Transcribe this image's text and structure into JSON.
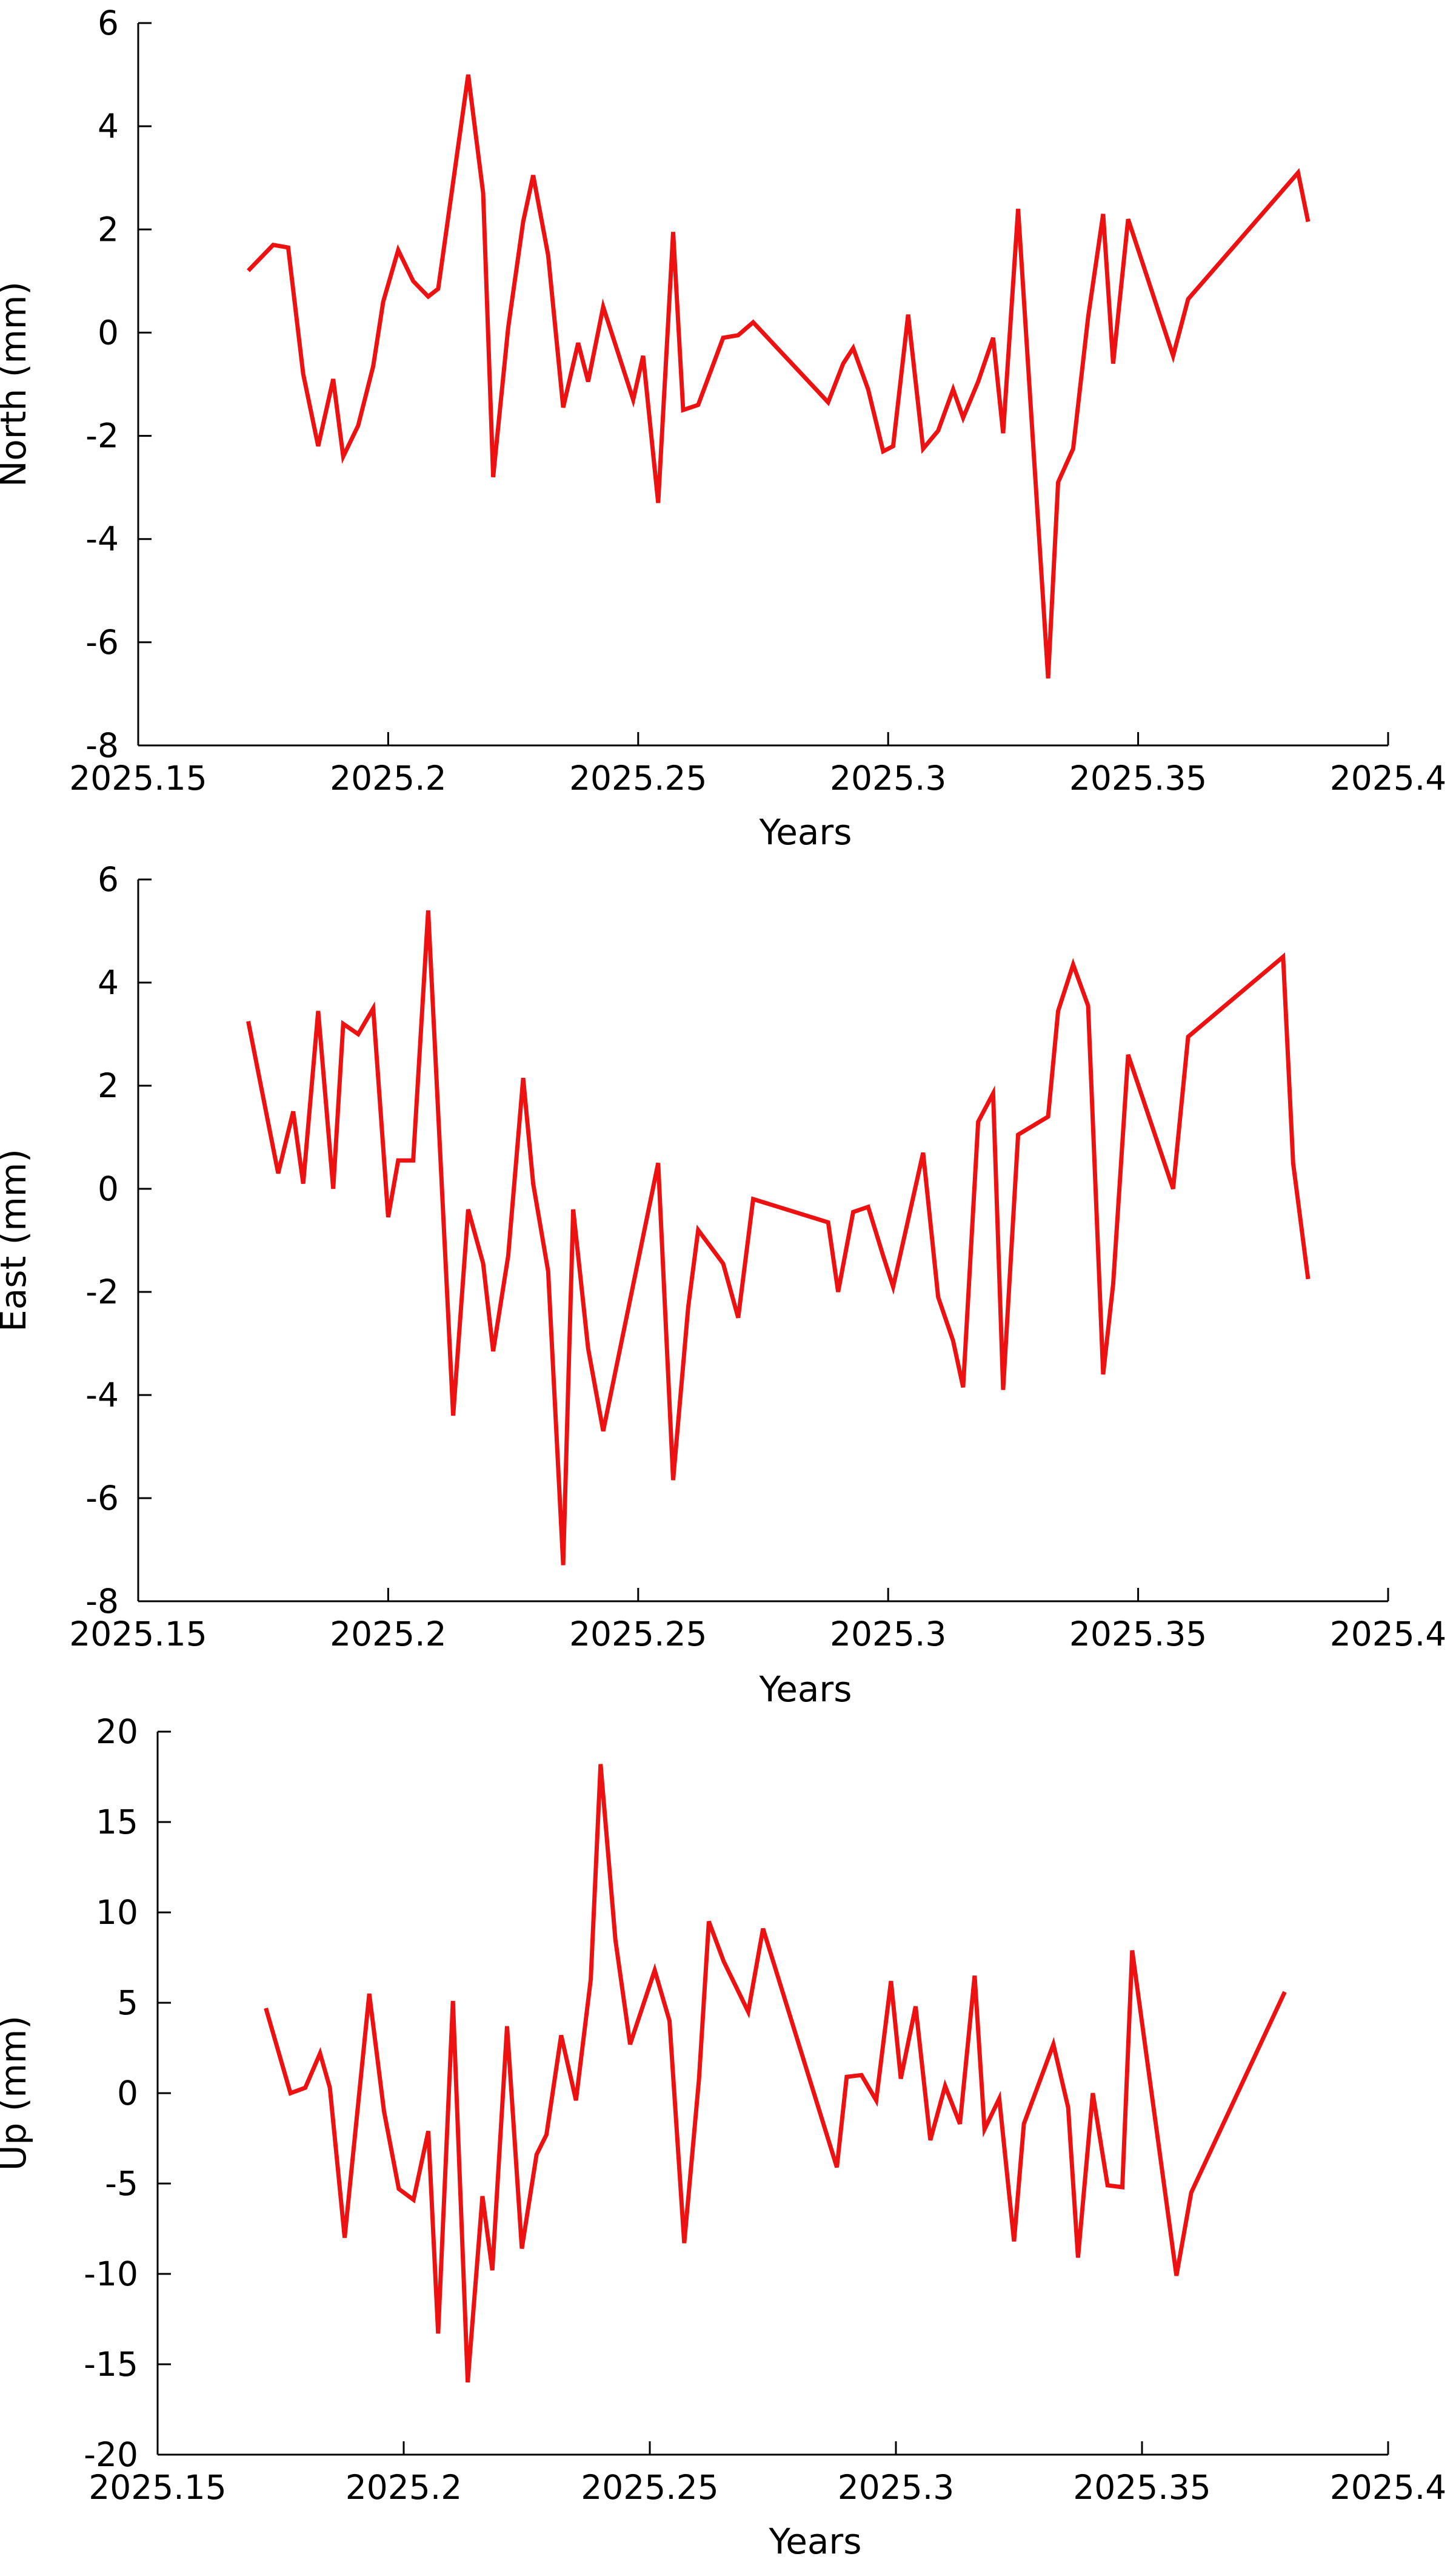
{
  "chart_data": [
    {
      "type": "line",
      "xlabel": "Years",
      "ylabel": "North (mm)",
      "xlim": [
        2025.15,
        2025.4
      ],
      "ylim": [
        -8,
        6
      ],
      "xticks": [
        2025.15,
        2025.2,
        2025.25,
        2025.3,
        2025.35,
        2025.4
      ],
      "xtick_labels": [
        "2025.15",
        "2025.2",
        "2025.25",
        "2025.3",
        "2025.35",
        "2025.4"
      ],
      "yticks": [
        -8,
        -6,
        -4,
        -2,
        0,
        2,
        4,
        6
      ],
      "ytick_labels": [
        "-8",
        "-6",
        "-4",
        "-2",
        "0",
        "2",
        "4",
        "6"
      ],
      "series": [
        {
          "color": "#ee1111",
          "x": [
            2025.172,
            2025.177,
            2025.18,
            2025.183,
            2025.186,
            2025.189,
            2025.191,
            2025.194,
            2025.197,
            2025.199,
            2025.202,
            2025.205,
            2025.208,
            2025.21,
            2025.216,
            2025.219,
            2025.221,
            2025.224,
            2025.227,
            2025.229,
            2025.232,
            2025.235,
            2025.238,
            2025.24,
            2025.243,
            2025.249,
            2025.251,
            2025.254,
            2025.257,
            2025.259,
            2025.262,
            2025.267,
            2025.27,
            2025.273,
            2025.288,
            2025.291,
            2025.293,
            2025.296,
            2025.299,
            2025.301,
            2025.304,
            2025.307,
            2025.31,
            2025.313,
            2025.315,
            2025.318,
            2025.321,
            2025.323,
            2025.326,
            2025.332,
            2025.334,
            2025.337,
            2025.34,
            2025.343,
            2025.345,
            2025.348,
            2025.357,
            2025.36,
            2025.382,
            2025.384
          ],
          "values": [
            1.2,
            1.7,
            1.65,
            -0.8,
            -2.2,
            -0.9,
            -2.4,
            -1.8,
            -0.65,
            0.6,
            1.6,
            1.0,
            0.7,
            0.85,
            5.0,
            2.7,
            -2.8,
            0.1,
            2.15,
            3.05,
            1.5,
            -1.45,
            -0.2,
            -0.95,
            0.5,
            -1.3,
            -0.45,
            -3.3,
            1.95,
            -1.5,
            -1.4,
            -0.1,
            -0.05,
            0.2,
            -1.35,
            -0.6,
            -0.3,
            -1.1,
            -2.3,
            -2.2,
            0.35,
            -2.25,
            -1.9,
            -1.1,
            -1.65,
            -0.95,
            -0.1,
            -1.95,
            2.4,
            -6.7,
            -2.9,
            -2.25,
            0.3,
            2.3,
            -0.6,
            2.2,
            -0.45,
            0.65,
            3.1,
            2.15
          ]
        }
      ]
    },
    {
      "type": "line",
      "xlabel": "Years",
      "ylabel": "East (mm)",
      "xlim": [
        2025.15,
        2025.4
      ],
      "ylim": [
        -8,
        6
      ],
      "xticks": [
        2025.15,
        2025.2,
        2025.25,
        2025.3,
        2025.35,
        2025.4
      ],
      "xtick_labels": [
        "2025.15",
        "2025.2",
        "2025.25",
        "2025.3",
        "2025.35",
        "2025.4"
      ],
      "yticks": [
        -8,
        -6,
        -4,
        -2,
        0,
        2,
        4,
        6
      ],
      "ytick_labels": [
        "-8",
        "-6",
        "-4",
        "-2",
        "0",
        "2",
        "4",
        "6"
      ],
      "series": [
        {
          "color": "#ee1111",
          "x": [
            2025.172,
            2025.178,
            2025.181,
            2025.183,
            2025.186,
            2025.189,
            2025.191,
            2025.194,
            2025.197,
            2025.2,
            2025.202,
            2025.205,
            2025.208,
            2025.213,
            2025.216,
            2025.219,
            2025.221,
            2025.224,
            2025.227,
            2025.229,
            2025.232,
            2025.235,
            2025.237,
            2025.24,
            2025.243,
            2025.254,
            2025.257,
            2025.26,
            2025.262,
            2025.267,
            2025.27,
            2025.273,
            2025.288,
            2025.29,
            2025.293,
            2025.296,
            2025.299,
            2025.301,
            2025.304,
            2025.307,
            2025.31,
            2025.313,
            2025.315,
            2025.318,
            2025.321,
            2025.323,
            2025.326,
            2025.332,
            2025.334,
            2025.337,
            2025.34,
            2025.343,
            2025.345,
            2025.348,
            2025.357,
            2025.36,
            2025.379,
            2025.381,
            2025.384
          ],
          "values": [
            3.25,
            0.3,
            1.5,
            0.1,
            3.45,
            0.0,
            3.2,
            3.0,
            3.5,
            -0.55,
            0.55,
            0.55,
            5.4,
            -4.4,
            -0.4,
            -1.45,
            -3.15,
            -1.3,
            2.15,
            0.1,
            -1.6,
            -7.3,
            -0.4,
            -3.1,
            -4.7,
            0.5,
            -5.65,
            -2.3,
            -0.8,
            -1.45,
            -2.5,
            -0.2,
            -0.65,
            -2.0,
            -0.45,
            -0.35,
            -1.3,
            -1.9,
            -0.6,
            0.7,
            -2.1,
            -2.95,
            -3.85,
            1.3,
            1.85,
            -3.9,
            1.05,
            1.4,
            3.45,
            4.35,
            3.55,
            -3.6,
            -1.85,
            2.6,
            0.0,
            2.95,
            4.5,
            0.5,
            -1.75
          ]
        }
      ]
    },
    {
      "type": "line",
      "xlabel": "Years",
      "ylabel": "Up (mm)",
      "xlim": [
        2025.15,
        2025.4
      ],
      "ylim": [
        -20,
        20
      ],
      "xticks": [
        2025.15,
        2025.2,
        2025.25,
        2025.3,
        2025.35,
        2025.4
      ],
      "xtick_labels": [
        "2025.15",
        "2025.2",
        "2025.25",
        "2025.3",
        "2025.35",
        "2025.4"
      ],
      "yticks": [
        -20,
        -15,
        -10,
        -5,
        0,
        5,
        10,
        15,
        20
      ],
      "ytick_labels": [
        "-20",
        "-15",
        "-10",
        "-5",
        "0",
        "5",
        "10",
        "15",
        "20"
      ],
      "series": [
        {
          "color": "#ee1111",
          "x": [
            2025.172,
            2025.177,
            2025.18,
            2025.183,
            2025.185,
            2025.188,
            2025.193,
            2025.196,
            2025.199,
            2025.202,
            2025.205,
            2025.207,
            2025.21,
            2025.213,
            2025.216,
            2025.218,
            2025.221,
            2025.224,
            2025.227,
            2025.229,
            2025.232,
            2025.235,
            2025.238,
            2025.24,
            2025.243,
            2025.246,
            2025.251,
            2025.254,
            2025.257,
            2025.26,
            2025.262,
            2025.265,
            2025.27,
            2025.273,
            2025.288,
            2025.29,
            2025.293,
            2025.296,
            2025.299,
            2025.301,
            2025.304,
            2025.307,
            2025.31,
            2025.313,
            2025.316,
            2025.318,
            2025.321,
            2025.324,
            2025.326,
            2025.332,
            2025.335,
            2025.337,
            2025.34,
            2025.343,
            2025.346,
            2025.348,
            2025.357,
            2025.36,
            2025.379
          ],
          "values": [
            4.7,
            0.0,
            0.3,
            2.2,
            0.3,
            -8.0,
            5.5,
            -1.0,
            -5.3,
            -5.9,
            -2.1,
            -13.3,
            5.1,
            -16.0,
            -5.7,
            -9.8,
            3.7,
            -8.6,
            -3.4,
            -2.3,
            3.2,
            -0.4,
            6.3,
            18.2,
            8.5,
            2.7,
            6.8,
            4.0,
            -8.3,
            0.8,
            9.5,
            7.3,
            4.5,
            9.1,
            -4.1,
            0.9,
            1.0,
            -0.4,
            6.2,
            0.8,
            4.8,
            -2.6,
            0.4,
            -1.7,
            6.5,
            -2.0,
            -0.3,
            -8.2,
            -1.7,
            2.7,
            -0.8,
            -9.1,
            0.0,
            -5.1,
            -5.2,
            7.9,
            -10.1,
            -5.5,
            5.6
          ]
        }
      ]
    }
  ]
}
